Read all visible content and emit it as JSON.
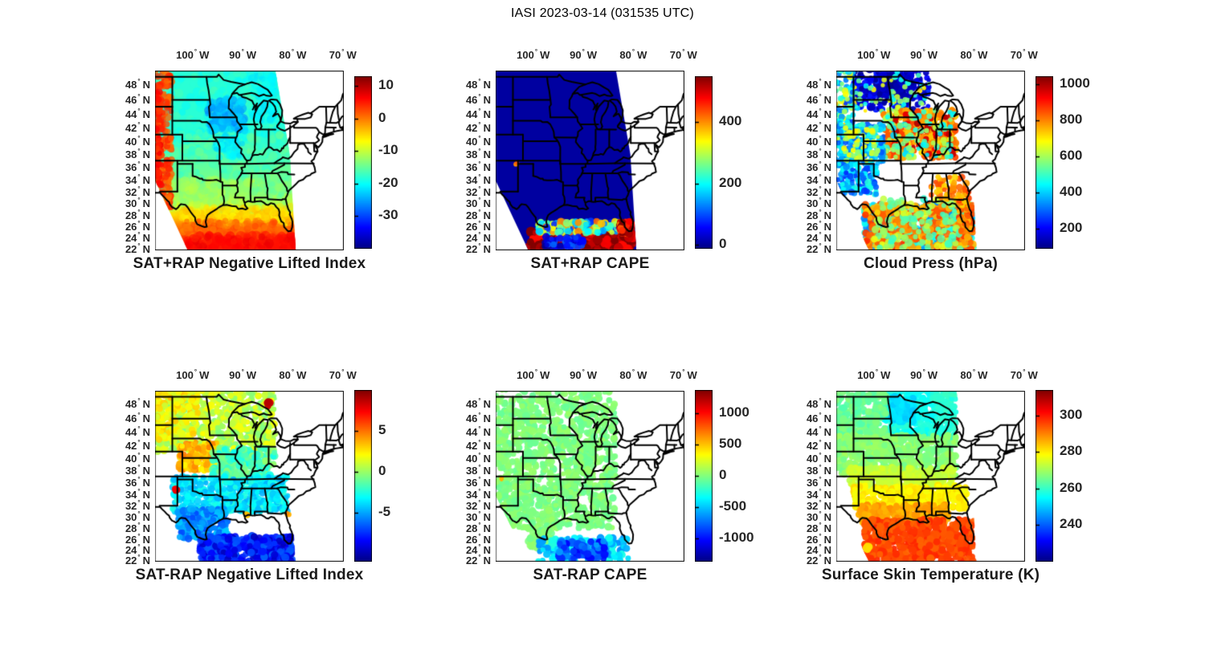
{
  "figure": {
    "title": "IASI 2023-03-14 (031535 UTC)"
  },
  "map_axes": {
    "deg": "°",
    "lon_ticks": [
      {
        "value": -100,
        "num": "100",
        "dir": "W"
      },
      {
        "value": -90,
        "num": "90",
        "dir": "W"
      },
      {
        "value": -80,
        "num": "80",
        "dir": "W"
      },
      {
        "value": -70,
        "num": "70",
        "dir": "W"
      }
    ],
    "lat_ticks": [
      {
        "value": 48,
        "num": "48",
        "dir": "N"
      },
      {
        "value": 46,
        "num": "46",
        "dir": "N"
      },
      {
        "value": 44,
        "num": "44",
        "dir": "N"
      },
      {
        "value": 42,
        "num": "42",
        "dir": "N"
      },
      {
        "value": 40,
        "num": "40",
        "dir": "N"
      },
      {
        "value": 38,
        "num": "38",
        "dir": "N"
      },
      {
        "value": 36,
        "num": "36",
        "dir": "N"
      },
      {
        "value": 34,
        "num": "34",
        "dir": "N"
      },
      {
        "value": 32,
        "num": "32",
        "dir": "N"
      },
      {
        "value": 30,
        "num": "30",
        "dir": "N"
      },
      {
        "value": 28,
        "num": "28",
        "dir": "N"
      },
      {
        "value": 26,
        "num": "26",
        "dir": "N"
      },
      {
        "value": 24,
        "num": "24",
        "dir": "N"
      },
      {
        "value": 22,
        "num": "22",
        "dir": "N"
      }
    ]
  },
  "projection": {
    "type": "mercator",
    "lon_min": -107.5,
    "lon_max": -69.8,
    "lat_min": 21.7,
    "lat_max": 49.8
  },
  "swath": [
    [
      -108,
      50.3
    ],
    [
      -83.6,
      50.3
    ],
    [
      -80.6,
      38
    ],
    [
      -79.4,
      21.6
    ],
    [
      -100.9,
      21.6
    ],
    [
      -107.6,
      34
    ]
  ],
  "colormap": "jet",
  "chart_data": [
    {
      "id": "sat-plus-rap-nli",
      "title": "SAT+RAP Negative Lifted Index",
      "row": 0,
      "col": 0,
      "type": "map_swath_dense",
      "description": "Dense retrieval swath: cyan/teal north-central, green central, yellow-orange-red toward Gulf, orange-red strip along western swath edge, blue patches over upper Midwest.",
      "colorbar": {
        "min": -40,
        "max": 13,
        "ticks": [
          {
            "v": 10,
            "label": "10"
          },
          {
            "v": 0,
            "label": "0"
          },
          {
            "v": -10,
            "label": "-10"
          },
          {
            "v": -20,
            "label": "-20"
          },
          {
            "v": -30,
            "label": "-30"
          }
        ]
      },
      "prefill": {
        "type": "gradient",
        "stops": [
          [
            49.8,
            -18
          ],
          [
            40,
            -18
          ],
          [
            36,
            -15
          ],
          [
            32,
            -13
          ],
          [
            29.5,
            -9
          ],
          [
            28,
            -5
          ],
          [
            26.5,
            -1
          ],
          [
            24.5,
            3
          ],
          [
            21.7,
            6
          ]
        ]
      },
      "regions": [
        [
          -107.6,
          -79,
          40,
          50.3,
          -18,
          2.5,
          260,
          5,
          0.5
        ],
        [
          -107.6,
          -79,
          34,
          41,
          -16,
          2.5,
          200,
          5,
          0.5
        ],
        [
          -106,
          -80,
          29,
          34,
          -12,
          2,
          160,
          5,
          0.5
        ],
        [
          -103,
          -80,
          26.5,
          29.5,
          -5,
          2,
          150,
          4,
          0.55
        ],
        [
          -102,
          -79.5,
          24,
          27,
          1,
          2,
          150,
          4,
          0.55
        ],
        [
          -101,
          -79.5,
          21.7,
          24.5,
          6,
          1.5,
          150,
          5,
          0.6
        ],
        [
          -107.6,
          -104.2,
          29,
          50.3,
          2.5,
          2.5,
          170,
          4,
          0.8
        ],
        [
          -107.6,
          -106.2,
          33,
          48,
          5,
          2,
          70,
          4,
          0.85
        ],
        [
          -97,
          -89.5,
          41.5,
          46,
          -24,
          2.5,
          120,
          5,
          0.65
        ],
        [
          -95.5,
          -90,
          37.5,
          41,
          -21,
          2,
          60,
          4,
          0.55
        ],
        [
          -88,
          -83.6,
          43,
          50.3,
          -20,
          2,
          90,
          5,
          0.6
        ],
        [
          -88,
          -81,
          31,
          35,
          -14,
          2,
          70,
          4,
          0.5
        ]
      ]
    },
    {
      "id": "sat-plus-rap-cape",
      "title": "SAT+RAP CAPE",
      "row": 0,
      "col": 1,
      "type": "map_swath_dense",
      "description": "Dense swath nearly all ~0 (dark blue); high CAPE (dark red with yellow/cyan fringe) band along Gulf of Mexico below ~27N; tiny elevated spot near NM/TX panhandle.",
      "colorbar": {
        "min": -12,
        "max": 550,
        "ticks": [
          {
            "v": 400,
            "label": "400"
          },
          {
            "v": 200,
            "label": "200"
          },
          {
            "v": 0,
            "label": "0"
          }
        ]
      },
      "prefill": {
        "type": "flat",
        "v": 6
      },
      "regions": [
        [
          -101,
          -80,
          21.7,
          25.2,
          530,
          60,
          300,
          5,
          0.95
        ],
        [
          -99,
          -83,
          24.8,
          26.9,
          250,
          180,
          170,
          4,
          0.9
        ],
        [
          -82.9,
          -80.2,
          24.6,
          26.9,
          500,
          90,
          80,
          4,
          0.95
        ],
        [
          -98,
          -90,
          21.9,
          24.2,
          60,
          70,
          60,
          4,
          0.9
        ],
        [
          -103.5,
          -103,
          36.4,
          36.8,
          430,
          40,
          3,
          2.5,
          1
        ]
      ]
    },
    {
      "id": "cloud-press",
      "title": "Cloud Press (hPa)",
      "row": 0,
      "col": 2,
      "type": "map_scatter",
      "description": "Sparse cloudy-scene dots: low pressure (deep blue) over ND/MN; high (orange ~800) over upper Midwest/Ohio valley; cyan-blue over CO/NM/W-TX; mixed cyan+orange over Texas and Gulf; clear gaps (white) over KS/OK and Southeast.",
      "colorbar": {
        "min": 90,
        "max": 1045,
        "ticks": [
          {
            "v": 1000,
            "label": "1000"
          },
          {
            "v": 800,
            "label": "800"
          },
          {
            "v": 600,
            "label": "600"
          },
          {
            "v": 400,
            "label": "400"
          },
          {
            "v": 200,
            "label": "200"
          }
        ]
      },
      "prefill": null,
      "regions": [
        [
          -104.2,
          -89,
          44.5,
          50.3,
          180,
          70,
          260,
          3.5,
          0.95
        ],
        [
          -99,
          -92,
          46,
          49.6,
          140,
          40,
          120,
          3.5,
          0.95
        ],
        [
          -104.5,
          -89,
          44,
          50.3,
          560,
          150,
          70,
          3,
          0.9
        ],
        [
          -107.6,
          -104,
          40,
          50,
          500,
          250,
          90,
          3.5,
          0.9
        ],
        [
          -98,
          -83.6,
          37.5,
          44.5,
          790,
          80,
          330,
          4,
          0.95
        ],
        [
          -96,
          -84,
          38,
          44,
          960,
          40,
          40,
          3.5,
          0.95
        ],
        [
          -98,
          -84,
          37.5,
          44.5,
          520,
          120,
          90,
          3.5,
          0.9
        ],
        [
          -107.6,
          -98,
          36.5,
          42.5,
          400,
          120,
          200,
          3.5,
          0.9
        ],
        [
          -106,
          -99,
          37,
          42,
          640,
          60,
          50,
          3,
          0.9
        ],
        [
          -107.6,
          -99.5,
          31.5,
          36.5,
          360,
          130,
          140,
          3.5,
          0.9
        ],
        [
          -102,
          -80,
          21.7,
          30,
          430,
          110,
          380,
          4,
          0.9
        ],
        [
          -102,
          -80,
          21.7,
          30,
          810,
          90,
          330,
          4,
          0.9
        ],
        [
          -100,
          -82,
          22,
          31,
          580,
          90,
          130,
          4,
          0.85
        ],
        [
          -89,
          -81,
          30.5,
          34.5,
          790,
          90,
          70,
          3.5,
          0.9
        ],
        [
          -83,
          -80.3,
          25,
          30.5,
          800,
          80,
          60,
          3.5,
          0.9
        ]
      ]
    },
    {
      "id": "sat-minus-rap-nli",
      "title": "SAT-RAP Negative Lifted Index",
      "row": 1,
      "col": 0,
      "type": "map_scatter",
      "description": "Difference field: green/yellow-green north, orange streaks over NE/KS, cyan mid-south, blue to dark blue over south Texas and Gulf; red outliers near Lake Superior and eastern NM.",
      "colorbar": {
        "min": -11,
        "max": 10,
        "ticks": [
          {
            "v": 5,
            "label": "5"
          },
          {
            "v": 0,
            "label": "0"
          },
          {
            "v": -5,
            "label": "-5"
          }
        ]
      },
      "prefill": null,
      "regions": [
        [
          -107.6,
          -83.6,
          41,
          50.3,
          0.8,
          1.4,
          550,
          4,
          0.95
        ],
        [
          -107.6,
          -99,
          42.5,
          50.3,
          2.2,
          1.2,
          160,
          4,
          0.9
        ],
        [
          -103,
          -95,
          38,
          42.5,
          3.6,
          1.4,
          170,
          3.5,
          0.9
        ],
        [
          -96,
          -83.6,
          36,
          41.5,
          -1.5,
          1.5,
          260,
          4,
          0.9
        ],
        [
          -104,
          -81,
          31,
          37,
          -3.5,
          1.3,
          380,
          4,
          0.9
        ],
        [
          -103,
          -93,
          26,
          31.5,
          -5.5,
          1.4,
          220,
          4,
          0.9
        ],
        [
          -98.5,
          -80,
          21.7,
          26.5,
          -8,
          1.8,
          300,
          4.5,
          0.9
        ],
        [
          -85.2,
          -84.5,
          47.5,
          48.3,
          8.5,
          0.5,
          10,
          4,
          1
        ],
        [
          -103.5,
          -103,
          34.6,
          35.1,
          8,
          0.5,
          6,
          3.5,
          1
        ],
        [
          -89.5,
          -89,
          30.1,
          30.5,
          3,
          0.5,
          5,
          3,
          1
        ],
        [
          -81.2,
          -80.7,
          30.3,
          30.8,
          4,
          0.5,
          4,
          3,
          1
        ]
      ]
    },
    {
      "id": "sat-minus-rap-cape",
      "title": "SAT-RAP CAPE",
      "row": 1,
      "col": 1,
      "type": "map_scatter",
      "description": "Difference near zero (uniform light green) over land; negative (cyan to dark blue) blobs over the Gulf of Mexico; tiny positive (yellow) spot in NW New Mexico.",
      "colorbar": {
        "min": -1375,
        "max": 1375,
        "ticks": [
          {
            "v": 1000,
            "label": "1000"
          },
          {
            "v": 500,
            "label": "500"
          },
          {
            "v": 0,
            "label": "0"
          },
          {
            "v": -500,
            "label": "-500"
          },
          {
            "v": -1000,
            "label": "-1000"
          }
        ]
      },
      "prefill": null,
      "regions": [
        [
          -107.6,
          -83.6,
          28,
          50.3,
          0,
          70,
          1100,
          4,
          0.95
        ],
        [
          -101,
          -96,
          24,
          28,
          0,
          70,
          60,
          4,
          0.9
        ],
        [
          -99,
          -81,
          21.7,
          26.3,
          -450,
          200,
          150,
          4,
          0.95
        ],
        [
          -95,
          -85,
          22.3,
          25.6,
          -820,
          240,
          80,
          4.5,
          0.95
        ],
        [
          -106.6,
          -106.1,
          36.3,
          36.7,
          500,
          50,
          2,
          2.5,
          1
        ]
      ]
    },
    {
      "id": "surface-skin-temp",
      "title": "Surface Skin Temperature (K)",
      "row": 1,
      "col": 2,
      "type": "map_scatter",
      "description": "Meridional gradient: cyan-blue (~252-258 K) over MN/WI, green (~265-270) northern plains and Midwest, yellow (~280) mid-south, orange-red (~295+) south Texas, Gulf and Florida; small yellow blob near 24N 101W.",
      "colorbar": {
        "min": 220,
        "max": 314,
        "ticks": [
          {
            "v": 300,
            "label": "300"
          },
          {
            "v": 280,
            "label": "280"
          },
          {
            "v": 260,
            "label": "260"
          },
          {
            "v": 240,
            "label": "240"
          }
        ]
      },
      "prefill": null,
      "regions": [
        [
          -98,
          -87.5,
          43.5,
          50.3,
          257,
          2.5,
          260,
          4,
          0.95
        ],
        [
          -96.5,
          -92,
          45.5,
          49,
          252,
          2,
          120,
          4,
          0.95
        ],
        [
          -107.6,
          -97.5,
          41.5,
          50.3,
          265,
          2.5,
          300,
          4,
          0.95
        ],
        [
          -87.5,
          -83.6,
          43,
          50.3,
          259,
          2,
          130,
          4,
          0.95
        ],
        [
          -107.6,
          -83.6,
          37,
          43.5,
          268,
          2.5,
          520,
          4,
          0.95
        ],
        [
          -105,
          -84,
          35,
          38.5,
          274,
          2,
          260,
          4,
          0.9
        ],
        [
          -104,
          -81.5,
          31.5,
          35.5,
          280,
          2.5,
          340,
          4,
          0.95
        ],
        [
          -103,
          -85,
          29,
          32.2,
          287,
          2.5,
          240,
          4,
          0.95
        ],
        [
          -102,
          -80,
          21.7,
          29.5,
          296,
          3,
          460,
          4.5,
          0.95
        ],
        [
          -101.5,
          -100.9,
          24.0,
          24.6,
          282,
          1,
          12,
          4,
          1
        ]
      ]
    }
  ]
}
